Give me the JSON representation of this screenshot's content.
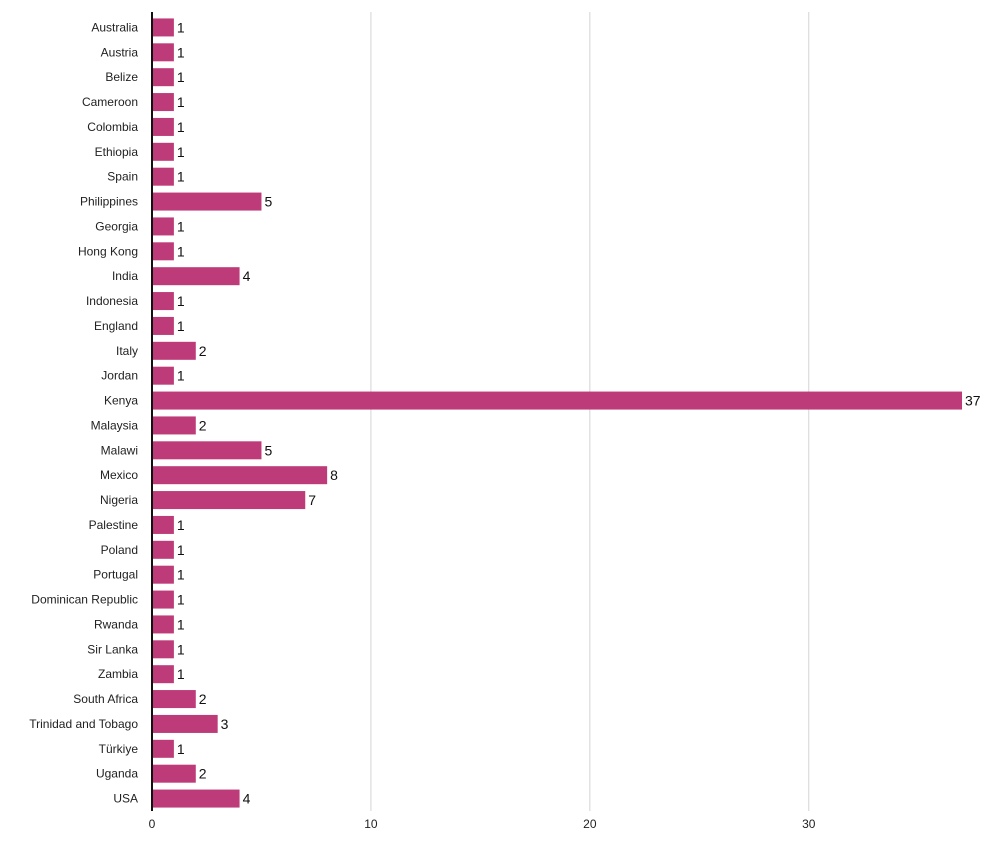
{
  "chart_data": {
    "type": "bar",
    "orientation": "horizontal",
    "title": "",
    "xlabel": "",
    "ylabel": "",
    "xlim": [
      0,
      37
    ],
    "x_ticks": [
      0,
      10,
      20,
      30
    ],
    "grid": "vertical",
    "bar_color": "#bd3b78",
    "data_labels": true,
    "categories": [
      "Australia",
      "Austria",
      "Belize",
      "Cameroon",
      "Colombia",
      "Ethiopia",
      "Spain",
      "Philippines",
      "Georgia",
      "Hong Kong",
      "India",
      "Indonesia",
      "England",
      "Italy",
      "Jordan",
      "Kenya",
      "Malaysia",
      "Malawi",
      "Mexico",
      "Nigeria",
      "Palestine",
      "Poland",
      "Portugal",
      "Dominican Republic",
      "Rwanda",
      "Sir Lanka",
      "Zambia",
      "South Africa",
      "Trinidad and Tobago",
      "Türkiye",
      "Uganda",
      "USA"
    ],
    "values": [
      1,
      1,
      1,
      1,
      1,
      1,
      1,
      5,
      1,
      1,
      4,
      1,
      1,
      2,
      1,
      37,
      2,
      5,
      8,
      7,
      1,
      1,
      1,
      1,
      1,
      1,
      1,
      2,
      3,
      1,
      2,
      4
    ]
  }
}
